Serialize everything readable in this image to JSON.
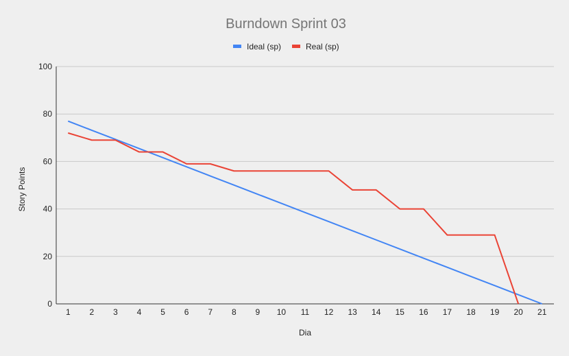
{
  "chart_data": {
    "type": "line",
    "title": "Burndown Sprint 03",
    "xlabel": "Dia",
    "ylabel": "Story Points",
    "x": [
      1,
      2,
      3,
      4,
      5,
      6,
      7,
      8,
      9,
      10,
      11,
      12,
      13,
      14,
      15,
      16,
      17,
      18,
      19,
      20,
      21
    ],
    "ylim": [
      0,
      100
    ],
    "yticks": [
      0,
      20,
      40,
      60,
      80,
      100
    ],
    "grid": true,
    "legend_position": "top",
    "series": [
      {
        "name": "Ideal (sp)",
        "color": "#4285f4",
        "values": [
          77,
          73.15,
          69.3,
          65.45,
          61.6,
          57.75,
          53.9,
          50.05,
          46.2,
          42.35,
          38.5,
          34.65,
          30.8,
          26.95,
          23.1,
          19.25,
          15.4,
          11.55,
          7.7,
          3.85,
          0
        ]
      },
      {
        "name": "Real (sp)",
        "color": "#ea4335",
        "values": [
          72,
          69,
          69,
          64,
          64,
          59,
          59,
          56,
          56,
          56,
          56,
          56,
          48,
          48,
          40,
          40,
          29,
          29,
          29,
          0,
          null
        ]
      }
    ]
  }
}
